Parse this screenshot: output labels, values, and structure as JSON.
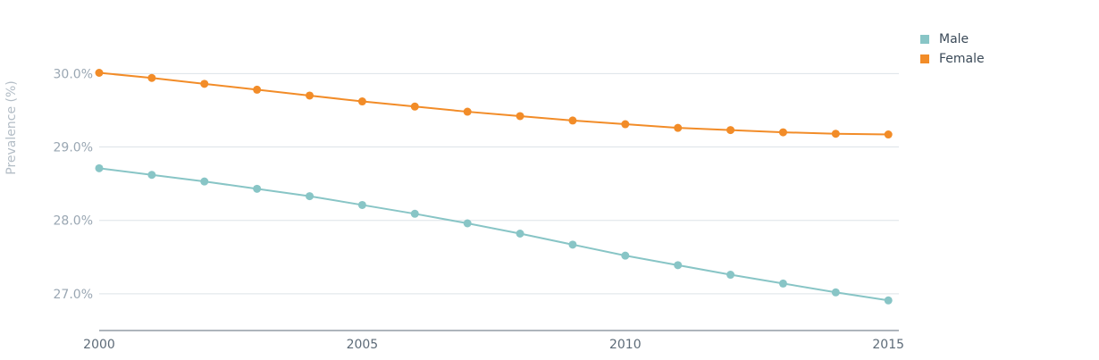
{
  "chart_data": {
    "type": "line",
    "x": [
      2000,
      2001,
      2002,
      2003,
      2004,
      2005,
      2006,
      2007,
      2008,
      2009,
      2010,
      2011,
      2012,
      2013,
      2014,
      2015
    ],
    "series": [
      {
        "name": "Male",
        "color": "#88c5c6",
        "values": [
          28.71,
          28.62,
          28.53,
          28.43,
          28.33,
          28.21,
          28.09,
          27.96,
          27.82,
          27.67,
          27.52,
          27.39,
          27.26,
          27.14,
          27.02,
          26.91
        ]
      },
      {
        "name": "Female",
        "color": "#f28c28",
        "values": [
          30.01,
          29.94,
          29.86,
          29.78,
          29.7,
          29.62,
          29.55,
          29.48,
          29.42,
          29.36,
          29.31,
          29.26,
          29.23,
          29.2,
          29.18,
          29.17
        ]
      }
    ],
    "ylabel": "Prevalence (%)",
    "xlabel": "",
    "yticks": [
      27.0,
      28.0,
      29.0,
      30.0
    ],
    "ytick_labels": [
      "27.0%",
      "28.0%",
      "29.0%",
      "30.0%"
    ],
    "xticks": [
      2000,
      2005,
      2010,
      2015
    ],
    "xtick_labels": [
      "2000",
      "2005",
      "2010",
      "2015"
    ],
    "ylim": [
      26.5,
      30.6
    ],
    "xlim": [
      2000,
      2015.2
    ],
    "grid": true,
    "legend_position": "top-right",
    "legend": [
      {
        "label": "Male",
        "color": "#88c5c6"
      },
      {
        "label": "Female",
        "color": "#f28c28"
      }
    ]
  }
}
